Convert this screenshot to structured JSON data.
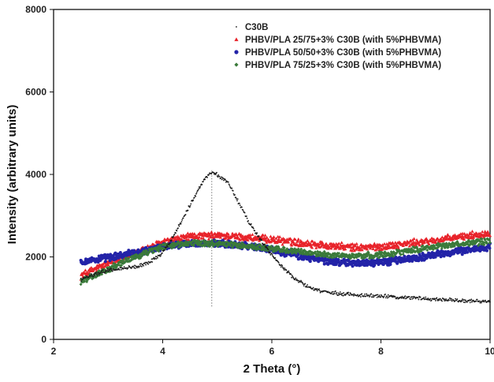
{
  "chart_data": {
    "type": "scatter",
    "title": "",
    "xlabel": "2 Theta (°)",
    "ylabel": "Intensity (arbitrary units)",
    "xlim": [
      2,
      10
    ],
    "ylim": [
      0,
      8000
    ],
    "xticks": [
      2,
      4,
      6,
      8,
      10
    ],
    "yticks": [
      0,
      2000,
      4000,
      6000,
      8000
    ],
    "xtick_labels": [
      "2",
      "4",
      "6",
      "8",
      "10"
    ],
    "ytick_labels": [
      "0",
      "2000",
      "4000",
      "6000",
      "8000"
    ],
    "grid": false,
    "legend_position": "top-center",
    "annotations": [
      {
        "type": "vertical-dotted-line",
        "x": 4.9,
        "y_from": 800,
        "y_to": 4100
      }
    ],
    "series": [
      {
        "name": "C30B",
        "color": "#1a1a1a",
        "marker": "dot",
        "points": [
          [
            2.5,
            1450
          ],
          [
            2.75,
            1580
          ],
          [
            3.0,
            1680
          ],
          [
            3.25,
            1720
          ],
          [
            3.5,
            1760
          ],
          [
            3.75,
            1850
          ],
          [
            4.0,
            2100
          ],
          [
            4.2,
            2500
          ],
          [
            4.4,
            3000
          ],
          [
            4.6,
            3500
          ],
          [
            4.8,
            3950
          ],
          [
            4.9,
            4050
          ],
          [
            5.0,
            4000
          ],
          [
            5.2,
            3800
          ],
          [
            5.4,
            3300
          ],
          [
            5.6,
            2800
          ],
          [
            5.8,
            2400
          ],
          [
            6.0,
            2050
          ],
          [
            6.2,
            1750
          ],
          [
            6.4,
            1500
          ],
          [
            6.6,
            1320
          ],
          [
            6.8,
            1200
          ],
          [
            7.0,
            1140
          ],
          [
            7.5,
            1080
          ],
          [
            8.0,
            1050
          ],
          [
            8.5,
            1010
          ],
          [
            9.0,
            980
          ],
          [
            9.5,
            940
          ],
          [
            10.0,
            920
          ]
        ]
      },
      {
        "name": "PHBV/PLA 25/75+3% C30B (with 5%PHBVMA)",
        "color": "#e8232a",
        "marker": "triangle",
        "points": [
          [
            2.5,
            1550
          ],
          [
            3.0,
            1850
          ],
          [
            3.5,
            2100
          ],
          [
            4.0,
            2350
          ],
          [
            4.5,
            2500
          ],
          [
            5.0,
            2520
          ],
          [
            5.5,
            2480
          ],
          [
            6.0,
            2420
          ],
          [
            6.5,
            2350
          ],
          [
            7.0,
            2280
          ],
          [
            7.5,
            2230
          ],
          [
            8.0,
            2250
          ],
          [
            8.5,
            2330
          ],
          [
            9.0,
            2400
          ],
          [
            9.5,
            2500
          ],
          [
            10.0,
            2580
          ]
        ]
      },
      {
        "name": "PHBV/PLA 50/50+3% C30B (with 5%PHBVMA)",
        "color": "#2323a8",
        "marker": "circle",
        "points": [
          [
            2.5,
            1880
          ],
          [
            3.0,
            1980
          ],
          [
            3.5,
            2100
          ],
          [
            4.0,
            2250
          ],
          [
            4.5,
            2320
          ],
          [
            5.0,
            2320
          ],
          [
            5.5,
            2280
          ],
          [
            6.0,
            2180
          ],
          [
            6.5,
            2020
          ],
          [
            7.0,
            1900
          ],
          [
            7.5,
            1850
          ],
          [
            8.0,
            1870
          ],
          [
            8.5,
            1950
          ],
          [
            9.0,
            2050
          ],
          [
            9.5,
            2150
          ],
          [
            10.0,
            2250
          ]
        ]
      },
      {
        "name": "PHBV/PLA 75/25+3% C30B (with 5%PHBVMA)",
        "color": "#3a7a3a",
        "marker": "diamond",
        "points": [
          [
            2.5,
            1400
          ],
          [
            3.0,
            1700
          ],
          [
            3.5,
            2000
          ],
          [
            4.0,
            2250
          ],
          [
            4.5,
            2330
          ],
          [
            5.0,
            2330
          ],
          [
            5.5,
            2270
          ],
          [
            6.0,
            2200
          ],
          [
            6.5,
            2120
          ],
          [
            7.0,
            2050
          ],
          [
            7.5,
            2020
          ],
          [
            8.0,
            2050
          ],
          [
            8.5,
            2150
          ],
          [
            9.0,
            2250
          ],
          [
            9.5,
            2320
          ],
          [
            10.0,
            2380
          ]
        ]
      }
    ]
  }
}
